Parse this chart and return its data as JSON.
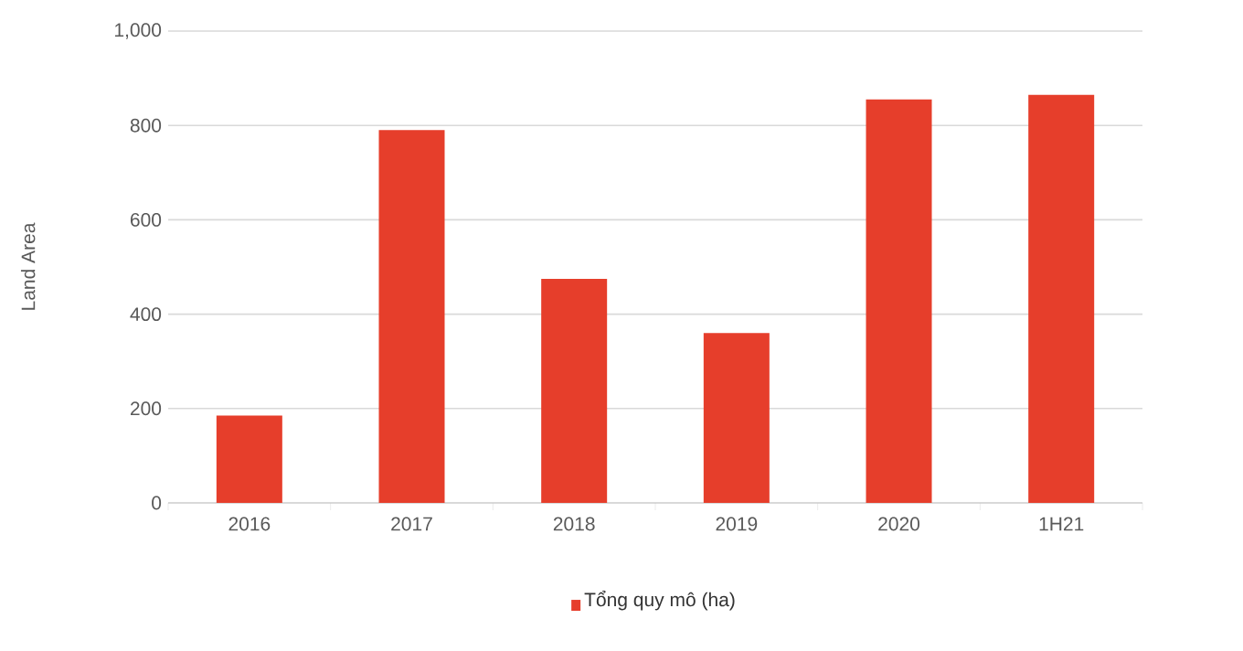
{
  "chart_data": {
    "type": "bar",
    "ylabel": "Land Area",
    "categories": [
      "2016",
      "2017",
      "2018",
      "2019",
      "2020",
      "1H21"
    ],
    "series": [
      {
        "name": "Tổng quy mô (ha)",
        "color": "#e63e2b",
        "values": [
          185,
          790,
          475,
          360,
          855,
          865
        ]
      }
    ],
    "ylim": [
      0,
      1000
    ],
    "yticks": [
      0,
      200,
      400,
      600,
      800,
      {
        "value": 1000,
        "label": "1,000"
      }
    ],
    "grid": "y",
    "legend": "bottom"
  }
}
